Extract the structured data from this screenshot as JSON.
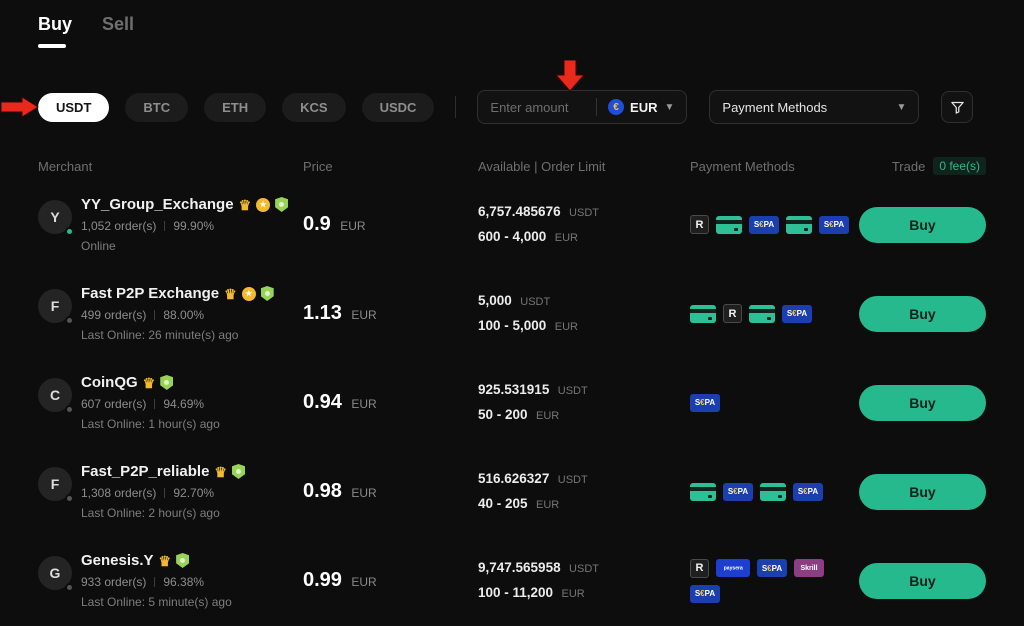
{
  "tabs": {
    "buy": "Buy",
    "sell": "Sell"
  },
  "currency_tabs": [
    {
      "label": "USDT",
      "active": true
    },
    {
      "label": "BTC",
      "active": false
    },
    {
      "label": "ETH",
      "active": false
    },
    {
      "label": "KCS",
      "active": false
    },
    {
      "label": "USDC",
      "active": false
    }
  ],
  "filters": {
    "amount_placeholder": "Enter amount",
    "fiat_code": "EUR",
    "fiat_symbol": "€",
    "payment_methods_label": "Payment Methods"
  },
  "table": {
    "headers": {
      "merchant": "Merchant",
      "price": "Price",
      "available": "Available | Order Limit",
      "payment_methods": "Payment Methods",
      "trade": "Trade",
      "fee_badge": "0 fee(s)"
    }
  },
  "rows": [
    {
      "avatar_letter": "Y",
      "online": true,
      "name": "YY_Group_Exchange",
      "badges": [
        "crown",
        "medal",
        "shield"
      ],
      "orders": "1,052 order(s)",
      "completion": "99.90%",
      "status": "Online",
      "price": "0.9",
      "price_currency": "EUR",
      "available": "6,757.485676",
      "available_unit": "USDT",
      "limit": "600 - 4,000",
      "limit_unit": "EUR",
      "payments": [
        {
          "type": "revolut",
          "label": "R"
        },
        {
          "type": "card",
          "label": ""
        },
        {
          "type": "sepa",
          "label": "S€PA"
        },
        {
          "type": "card",
          "label": ""
        },
        {
          "type": "sepa",
          "label": "S€PA"
        }
      ],
      "buy_label": "Buy"
    },
    {
      "avatar_letter": "F",
      "online": false,
      "name": "Fast P2P Exchange",
      "badges": [
        "crown",
        "medal",
        "shield"
      ],
      "orders": "499 order(s)",
      "completion": "88.00%",
      "status": "Last Online: 26 minute(s) ago",
      "price": "1.13",
      "price_currency": "EUR",
      "available": "5,000",
      "available_unit": "USDT",
      "limit": "100 - 5,000",
      "limit_unit": "EUR",
      "payments": [
        {
          "type": "card",
          "label": ""
        },
        {
          "type": "revolut",
          "label": "R"
        },
        {
          "type": "card",
          "label": ""
        },
        {
          "type": "sepa",
          "label": "S€PA"
        }
      ],
      "buy_label": "Buy"
    },
    {
      "avatar_letter": "C",
      "online": false,
      "name": "CoinQG",
      "badges": [
        "crown",
        "shield"
      ],
      "orders": "607 order(s)",
      "completion": "94.69%",
      "status": "Last Online: 1 hour(s) ago",
      "price": "0.94",
      "price_currency": "EUR",
      "available": "925.531915",
      "available_unit": "USDT",
      "limit": "50 - 200",
      "limit_unit": "EUR",
      "payments": [
        {
          "type": "sepa",
          "label": "S€PA"
        }
      ],
      "buy_label": "Buy"
    },
    {
      "avatar_letter": "F",
      "online": false,
      "name": "Fast_P2P_reliable",
      "badges": [
        "crown",
        "shield"
      ],
      "orders": "1,308 order(s)",
      "completion": "92.70%",
      "status": "Last Online: 2 hour(s) ago",
      "price": "0.98",
      "price_currency": "EUR",
      "available": "516.626327",
      "available_unit": "USDT",
      "limit": "40 - 205",
      "limit_unit": "EUR",
      "payments": [
        {
          "type": "card",
          "label": ""
        },
        {
          "type": "sepa",
          "label": "S€PA"
        },
        {
          "type": "card",
          "label": ""
        },
        {
          "type": "sepa",
          "label": "S€PA"
        }
      ],
      "buy_label": "Buy"
    },
    {
      "avatar_letter": "G",
      "online": false,
      "name": "Genesis.Y",
      "badges": [
        "crown",
        "shield"
      ],
      "orders": "933 order(s)",
      "completion": "96.38%",
      "status": "Last Online: 5 minute(s) ago",
      "price": "0.99",
      "price_currency": "EUR",
      "available": "9,747.565958",
      "available_unit": "USDT",
      "limit": "100 - 11,200",
      "limit_unit": "EUR",
      "payments": [
        {
          "type": "revolut",
          "label": "R"
        },
        {
          "type": "paysera",
          "label": "paysera"
        },
        {
          "type": "sepa",
          "label": "S€PA"
        },
        {
          "type": "skrill",
          "label": "Skrill"
        },
        {
          "type": "sepa",
          "label": "S€PA"
        }
      ],
      "buy_label": "Buy"
    }
  ],
  "colors": {
    "accent_green": "#27b98e",
    "annotation_red": "#e8291c",
    "sepa_blue": "#1b3fae",
    "skrill_purple": "#8b3f82"
  }
}
